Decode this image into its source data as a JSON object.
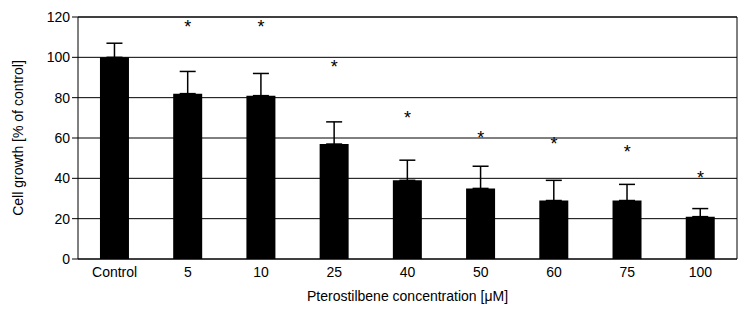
{
  "chart_data": {
    "type": "bar",
    "x_label": "Pterostilbene concentration [μM]",
    "y_label": "Cell growth [% of control]",
    "categories": [
      "Control",
      "5",
      "10",
      "25",
      "40",
      "50",
      "60",
      "75",
      "100"
    ],
    "values": [
      100,
      82,
      81,
      57,
      39,
      35,
      29,
      29,
      21
    ],
    "errors": [
      7,
      11,
      11,
      11,
      10,
      11,
      10,
      8,
      4
    ],
    "color": "#000000",
    "ylim": [
      0,
      120
    ],
    "yticks": [
      0,
      20,
      40,
      60,
      80,
      100,
      120
    ],
    "grid": true,
    "annotations": [
      {
        "category": "5",
        "y": 115,
        "text": "*"
      },
      {
        "category": "10",
        "y": 115,
        "text": "*"
      },
      {
        "category": "25",
        "y": 95,
        "text": "*"
      },
      {
        "category": "40",
        "y": 70,
        "text": "*"
      },
      {
        "category": "50",
        "y": 60,
        "text": "*"
      },
      {
        "category": "60",
        "y": 57,
        "text": "*"
      },
      {
        "category": "75",
        "y": 53,
        "text": "*"
      },
      {
        "category": "100",
        "y": 40,
        "text": "*"
      }
    ]
  }
}
